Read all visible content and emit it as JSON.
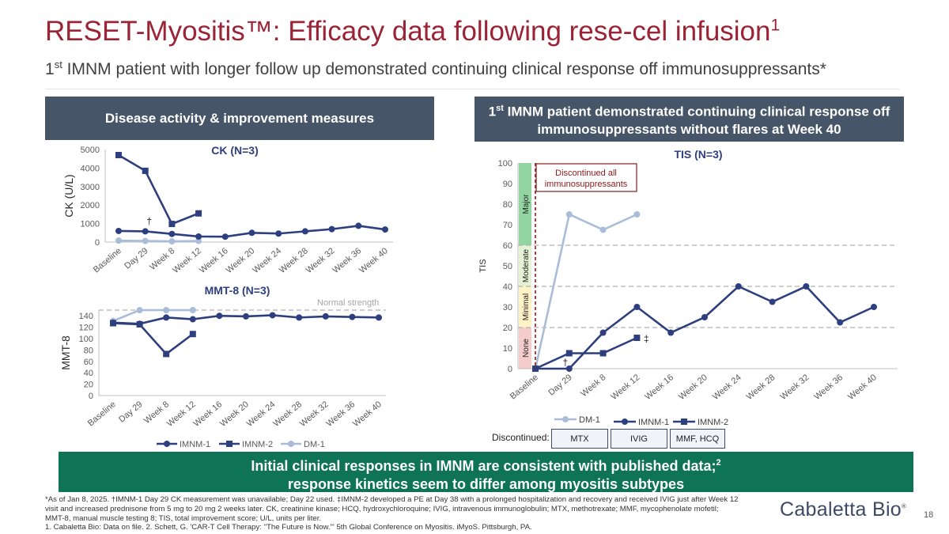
{
  "title": "RESET-Myositis™: Efficacy data following rese-cel infusion",
  "title_sup": "1",
  "subtitle_sup": "st",
  "subtitle": " IMNM patient with longer follow up demonstrated continuing clinical response off immunosuppressants*",
  "subtitle_prefix": "1",
  "left_header": "Disease activity & improvement measures",
  "right_header_prefix": "1",
  "right_header_sup": "st",
  "right_header": " IMNM patient demonstrated continuing clinical response off immunosuppressants without flares at Week 40",
  "colors": {
    "title": "#9B2335",
    "panel_header": "#475568",
    "imnm": "#2E3F7F",
    "dm": "#A9BDD9",
    "banner": "#0f7356",
    "discontinued_line": "#8B1A1A"
  },
  "weeks": [
    "Baseline",
    "Day 29",
    "Week 8",
    "Week 12",
    "Week 16",
    "Week 20",
    "Week 24",
    "Week 28",
    "Week 32",
    "Week 36",
    "Week 40"
  ],
  "chart_data": [
    {
      "type": "line",
      "title": "CK (N=3)",
      "ylabel": "CK (U/L)",
      "ylim": [
        0,
        5000
      ],
      "yticks": [
        0,
        1000,
        2000,
        3000,
        4000,
        5000
      ],
      "categories": [
        "Baseline",
        "Day 29",
        "Week 8",
        "Week 12",
        "Week 16",
        "Week 20",
        "Week 24",
        "Week 28",
        "Week 32",
        "Week 36",
        "Week 40"
      ],
      "series": [
        {
          "name": "IMNM-1",
          "marker": "circle",
          "values": [
            600,
            580,
            440,
            300,
            290,
            500,
            460,
            580,
            700,
            880,
            680
          ]
        },
        {
          "name": "IMNM-2",
          "marker": "square",
          "values": [
            4700,
            3850,
            980,
            1550,
            null,
            null,
            null,
            null,
            null,
            null,
            null
          ]
        },
        {
          "name": "DM-1",
          "marker": "circle",
          "values": [
            80,
            60,
            40,
            60,
            null,
            null,
            null,
            null,
            null,
            null,
            null
          ]
        }
      ],
      "annotations": [
        {
          "text": "†",
          "category": "Day 29"
        }
      ]
    },
    {
      "type": "line",
      "title": "MMT-8 (N=3)",
      "ylabel": "MMT-8",
      "ylim": [
        0,
        150
      ],
      "yticks": [
        0,
        20,
        40,
        60,
        80,
        100,
        120,
        140
      ],
      "reference_line": {
        "value": 150,
        "label": "Normal strength"
      },
      "categories": [
        "Baseline",
        "Day 29",
        "Week 8",
        "Week 12",
        "Week 16",
        "Week 20",
        "Week 24",
        "Week 28",
        "Week 32",
        "Week 36",
        "Week 40"
      ],
      "series": [
        {
          "name": "IMNM-1",
          "marker": "circle",
          "values": [
            128,
            126,
            137,
            134,
            140,
            139,
            141,
            137,
            139,
            138,
            137
          ]
        },
        {
          "name": "IMNM-2",
          "marker": "square",
          "values": [
            127,
            125,
            73,
            108,
            null,
            null,
            null,
            null,
            null,
            null,
            null
          ]
        },
        {
          "name": "DM-1",
          "marker": "circle",
          "values": [
            131,
            150,
            150,
            150,
            null,
            null,
            null,
            null,
            null,
            null,
            null
          ]
        }
      ],
      "legend": [
        "IMNM-1",
        "IMNM-2",
        "DM-1"
      ]
    },
    {
      "type": "line",
      "title": "TIS (N=3)",
      "ylabel": "TIS",
      "ylim": [
        0,
        100
      ],
      "yticks": [
        0,
        10,
        20,
        30,
        40,
        50,
        60,
        70,
        80,
        90,
        100
      ],
      "categories": [
        "Baseline",
        "Day 29",
        "Week 8",
        "Week 12",
        "Week 16",
        "Week 20",
        "Week 24",
        "Week 28",
        "Week 32",
        "Week 36",
        "Week 40"
      ],
      "bands": [
        {
          "label": "None",
          "from": 0,
          "to": 20,
          "color": "#F4CCCC"
        },
        {
          "label": "Minimal",
          "from": 20,
          "to": 40,
          "color": "#FFF2C6"
        },
        {
          "label": "Moderate",
          "from": 40,
          "to": 60,
          "color": "#E6F2D4"
        },
        {
          "label": "Major",
          "from": 60,
          "to": 100,
          "color": "#93D5A1"
        }
      ],
      "series": [
        {
          "name": "DM-1",
          "marker": "circle",
          "values": [
            0,
            75,
            67.5,
            75,
            null,
            null,
            null,
            null,
            null,
            null,
            null
          ]
        },
        {
          "name": "IMNM-1",
          "marker": "circle",
          "values": [
            0,
            0,
            17.5,
            30,
            17.5,
            25,
            40,
            32.5,
            40,
            22.5,
            30
          ]
        },
        {
          "name": "IMNM-2",
          "marker": "square",
          "values": [
            0,
            7.5,
            7.5,
            15,
            null,
            null,
            null,
            null,
            null,
            null,
            null
          ]
        }
      ],
      "annotations": [
        {
          "text": "Discontinued all immunosuppressants",
          "category": "Baseline"
        },
        {
          "text": "†",
          "category": "Day 29"
        },
        {
          "text": "‡",
          "category": "Week 12"
        }
      ],
      "legend": [
        "DM-1",
        "IMNM-1",
        "IMNM-2"
      ]
    }
  ],
  "discontinued": {
    "label": "Discontinued:",
    "items": [
      "MTX",
      "IVIG",
      "MMF, HCQ"
    ]
  },
  "banner_line1": "Initial clinical responses in IMNM are consistent with published data;",
  "banner_sup": "2",
  "banner_line2": "response kinetics seem to differ among myositis subtypes",
  "footnote_lines": [
    "*As of Jan 8, 2025. †IMNM-1 Day 29 CK measurement was unavailable; Day 22 used. ‡IMNM-2 developed a PE at Day 38 with a prolonged hospitalization and recovery and received IVIG just after Week 12",
    "visit and increased prednisone from 5 mg to 20 mg 2 weeks later. CK, creatinine kinase; HCQ, hydroxychloroquine; IVIG, intravenous immunoglobulin; MTX, methotrexate; MMF, mycophenolate mofetil;",
    "MMT-8, manual muscle testing 8; TIS, total improvement score; U/L, units per liter.",
    "1. Cabaletta Bio: Data on file. 2. Schett, G. 'CAR-T Cell Therapy: \"The Future is Now.\"' 5th Global Conference on Myositis. iMyoS. Pittsburgh, PA."
  ],
  "logo": "Cabaletta Bio",
  "logo_mark": "®",
  "page_number": "18"
}
